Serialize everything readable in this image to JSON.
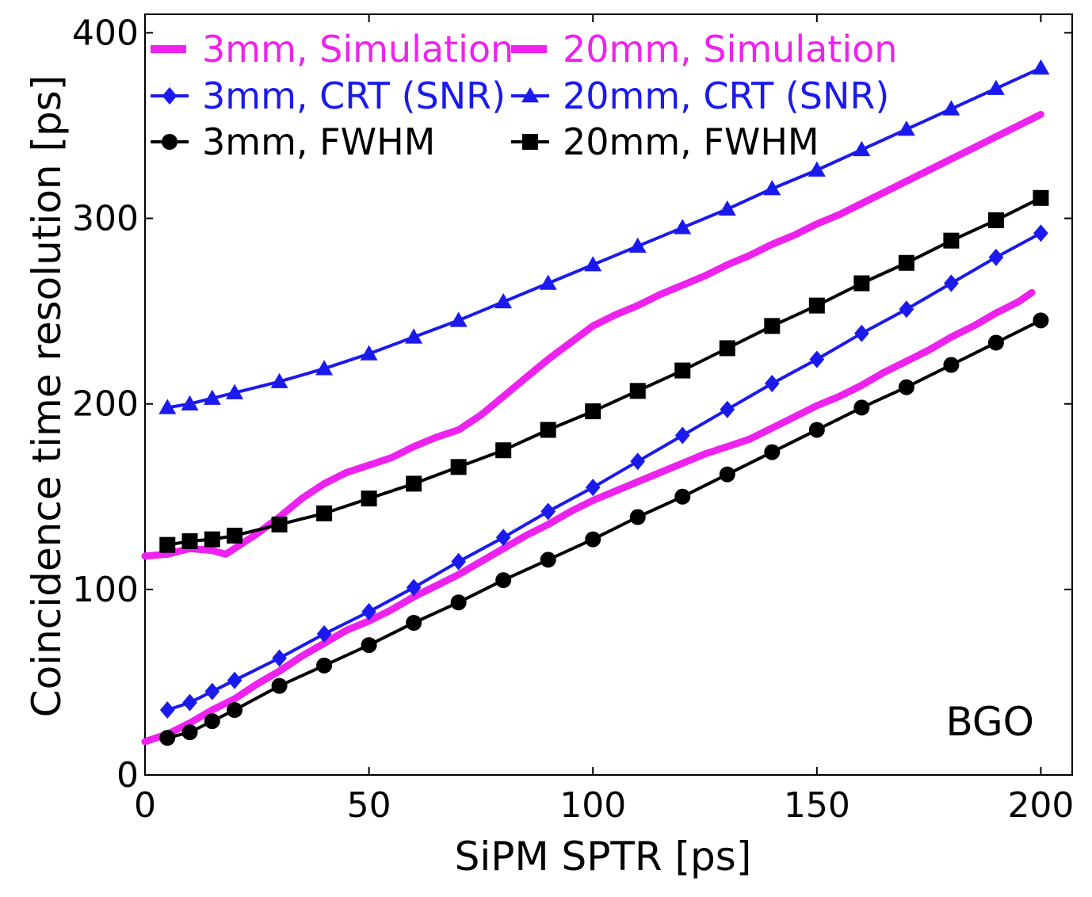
{
  "chart_data": {
    "type": "line",
    "xlabel": "SiPM SPTR [ps]",
    "ylabel": "Coincidence time resolution [ps]",
    "xlim": [
      0,
      207
    ],
    "ylim": [
      0,
      410
    ],
    "xticks": [
      0,
      50,
      100,
      150,
      200
    ],
    "yticks": [
      0,
      100,
      200,
      300,
      400
    ],
    "xtick_labels": [
      "0",
      "50",
      "100",
      "150",
      "200"
    ],
    "ytick_labels": [
      "0",
      "100",
      "200",
      "300",
      "400"
    ],
    "grid": false,
    "legend_position": "top-left",
    "annotation": "BGO",
    "series": [
      {
        "name": "3mm, Simulation",
        "color": "#ee22ee",
        "style": "thick",
        "marker": "none",
        "x": [
          0,
          5,
          10,
          15,
          20,
          25,
          30,
          35,
          40,
          45,
          50,
          55,
          60,
          65,
          70,
          75,
          80,
          85,
          90,
          95,
          100,
          105,
          110,
          115,
          120,
          125,
          130,
          135,
          140,
          145,
          150,
          155,
          160,
          165,
          170,
          175,
          180,
          185,
          190,
          195,
          198
        ],
        "y": [
          18,
          22,
          28,
          35,
          41,
          49,
          56,
          64,
          71,
          78,
          83,
          89,
          96,
          102,
          108,
          115,
          122,
          129,
          135,
          142,
          148,
          153,
          158,
          163,
          168,
          173,
          177,
          181,
          187,
          193,
          199,
          204,
          210,
          217,
          223,
          229,
          236,
          242,
          249,
          255,
          260
        ]
      },
      {
        "name": "20mm, Simulation",
        "color": "#ee22ee",
        "style": "thick",
        "marker": "none",
        "x": [
          0,
          5,
          10,
          15,
          18,
          20,
          25,
          30,
          35,
          40,
          45,
          50,
          55,
          60,
          65,
          70,
          75,
          80,
          85,
          90,
          95,
          100,
          105,
          110,
          115,
          120,
          125,
          130,
          135,
          140,
          145,
          150,
          155,
          160,
          165,
          170,
          175,
          180,
          185,
          190,
          195,
          200
        ],
        "y": [
          118,
          119,
          122,
          121,
          119,
          122,
          130,
          139,
          149,
          157,
          163,
          167,
          171,
          177,
          182,
          186,
          194,
          204,
          214,
          224,
          233,
          242,
          248,
          253,
          259,
          264,
          269,
          275,
          280,
          286,
          291,
          297,
          302,
          308,
          314,
          320,
          326,
          332,
          338,
          344,
          350,
          356
        ]
      },
      {
        "name": "3mm, CRT (SNR)",
        "color": "#1a1aee",
        "style": "line",
        "marker": "diamond",
        "x": [
          5,
          10,
          15,
          20,
          30,
          40,
          50,
          60,
          70,
          80,
          90,
          100,
          110,
          120,
          130,
          140,
          150,
          160,
          170,
          180,
          190,
          200
        ],
        "y": [
          35,
          39,
          45,
          51,
          63,
          76,
          88,
          101,
          115,
          128,
          142,
          155,
          169,
          183,
          197,
          211,
          224,
          238,
          251,
          265,
          279,
          292
        ]
      },
      {
        "name": "20mm, CRT (SNR)",
        "color": "#1a1aee",
        "style": "line",
        "marker": "triangle",
        "x": [
          5,
          10,
          15,
          20,
          30,
          40,
          50,
          60,
          70,
          80,
          90,
          100,
          110,
          120,
          130,
          140,
          150,
          160,
          170,
          180,
          190,
          200
        ],
        "y": [
          198,
          200,
          203,
          206,
          212,
          219,
          227,
          236,
          245,
          255,
          265,
          275,
          285,
          295,
          305,
          316,
          326,
          337,
          348,
          359,
          370,
          381
        ]
      },
      {
        "name": "3mm, FWHM",
        "color": "#000000",
        "style": "line",
        "marker": "circle",
        "x": [
          5,
          10,
          15,
          20,
          30,
          40,
          50,
          60,
          70,
          80,
          90,
          100,
          110,
          120,
          130,
          140,
          150,
          160,
          170,
          180,
          190,
          200
        ],
        "y": [
          20,
          23,
          29,
          35,
          48,
          59,
          70,
          82,
          93,
          105,
          116,
          127,
          139,
          150,
          162,
          174,
          186,
          198,
          209,
          221,
          233,
          245
        ]
      },
      {
        "name": "20mm, FWHM",
        "color": "#000000",
        "style": "line",
        "marker": "square",
        "x": [
          5,
          10,
          15,
          20,
          30,
          40,
          50,
          60,
          70,
          80,
          90,
          100,
          110,
          120,
          130,
          140,
          150,
          160,
          170,
          180,
          190,
          200
        ],
        "y": [
          124,
          126,
          127,
          129,
          135,
          141,
          149,
          157,
          166,
          175,
          186,
          196,
          207,
          218,
          230,
          242,
          253,
          265,
          276,
          288,
          299,
          311
        ]
      }
    ]
  }
}
